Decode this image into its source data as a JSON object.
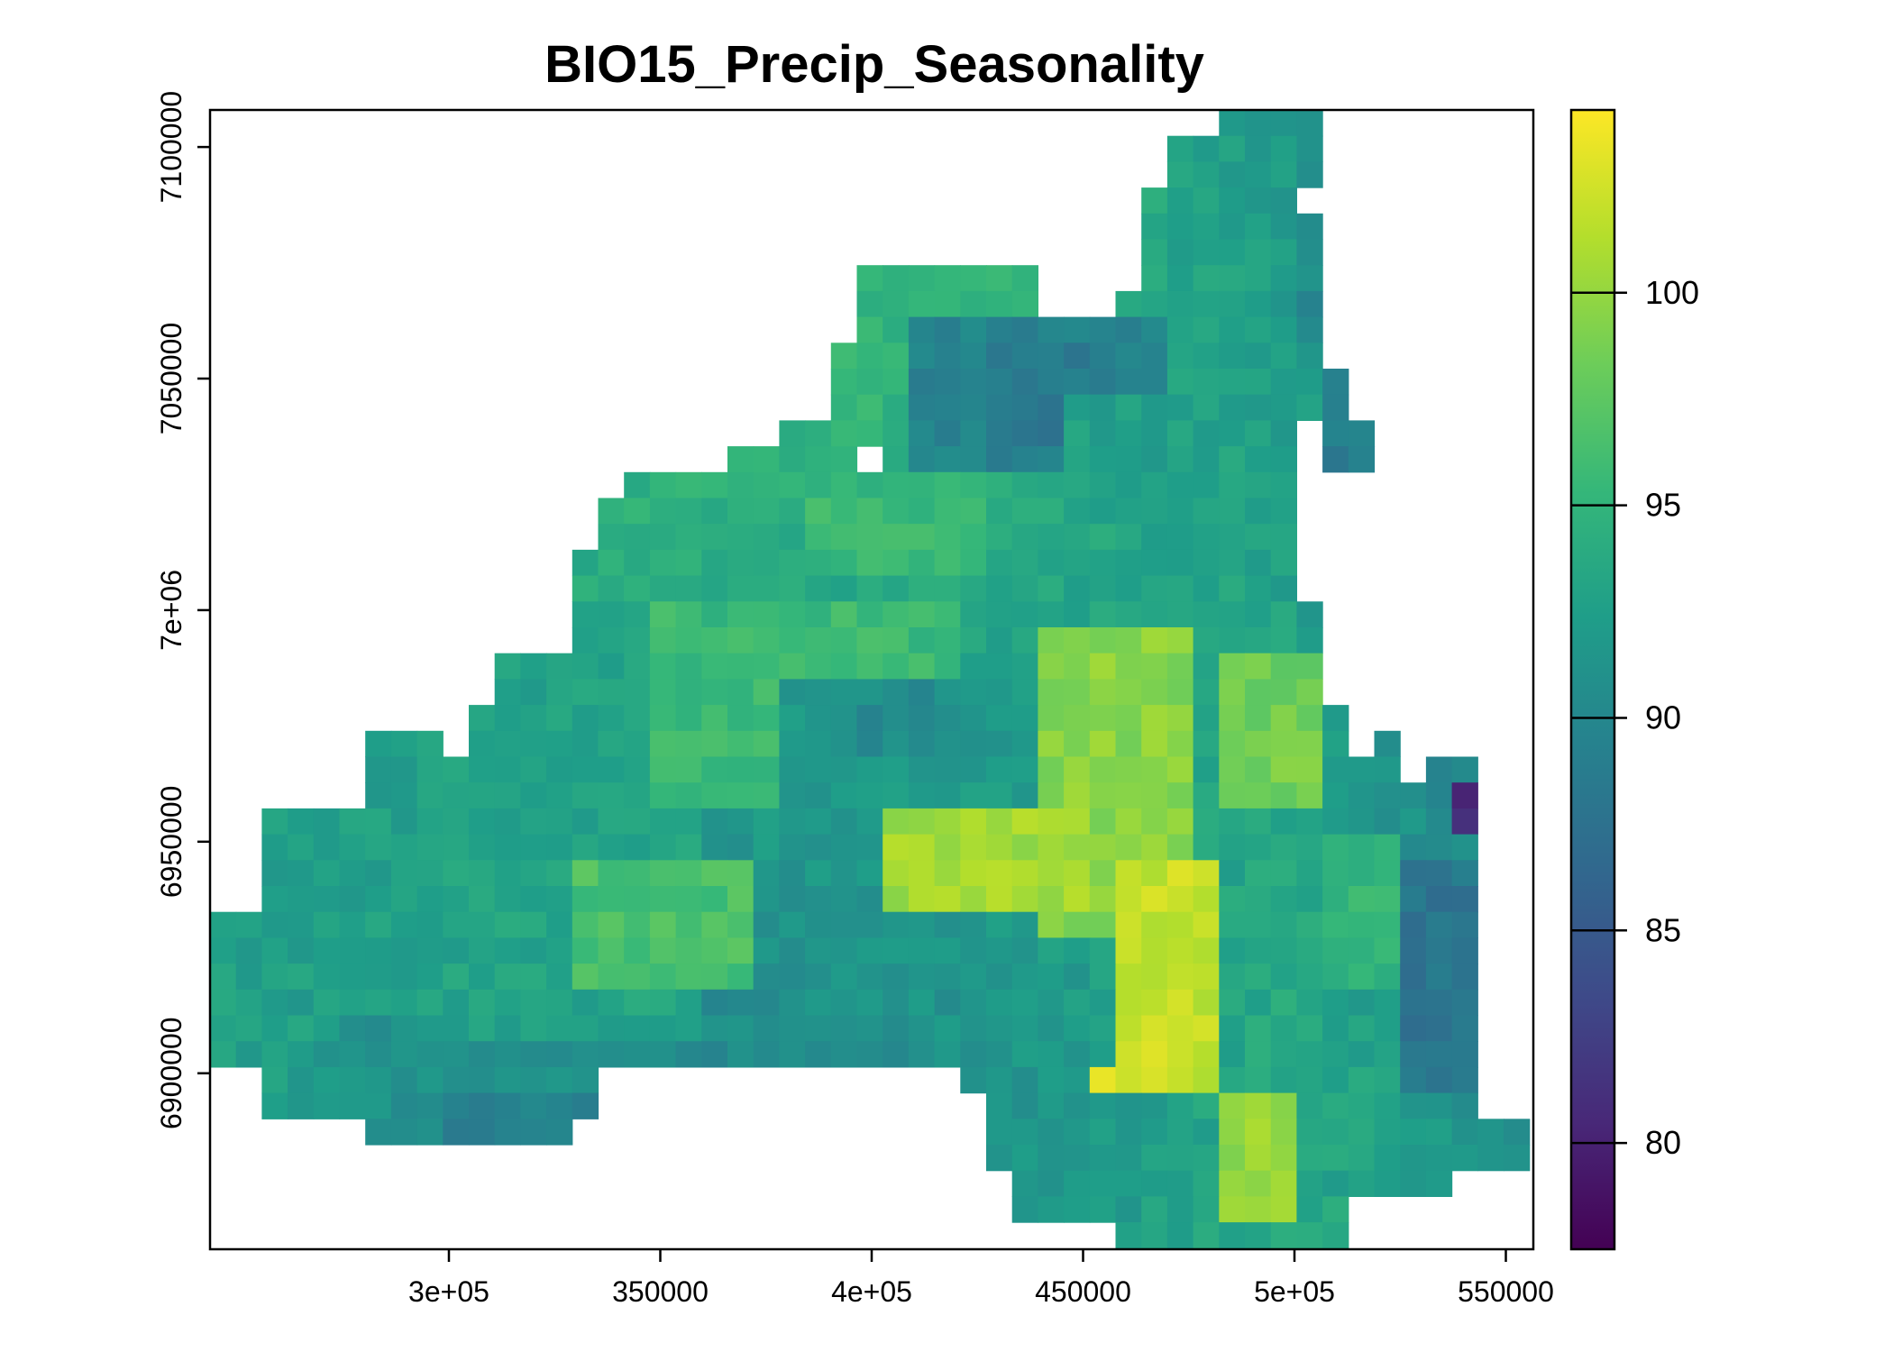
{
  "chart_data": {
    "type": "heatmap",
    "title": "BIO15_Precip_Seasonality",
    "xlabel": "",
    "ylabel": "",
    "xlim": [
      243500,
      556500
    ],
    "ylim": [
      6862000,
      7108000
    ],
    "x_tick_values": [
      300000,
      350000,
      400000,
      450000,
      500000,
      550000
    ],
    "x_tick_labels": [
      "3e+05",
      "350000",
      "4e+05",
      "450000",
      "5e+05",
      "550000"
    ],
    "y_tick_values": [
      6900000,
      6950000,
      7000000,
      7050000,
      7100000
    ],
    "y_tick_labels": [
      "6900000",
      "6950000",
      "7e+06",
      "7050000",
      "7100000"
    ],
    "colorbar": {
      "range": [
        77.5,
        104.3
      ],
      "tick_values": [
        80,
        85,
        90,
        95,
        100
      ],
      "tick_labels": [
        "80",
        "85",
        "90",
        "95",
        "100"
      ],
      "palette": [
        "#440154",
        "#482878",
        "#3e4a89",
        "#31688e",
        "#26828e",
        "#1f9e89",
        "#35b779",
        "#6dcd59",
        "#b4de2c",
        "#fde725"
      ]
    },
    "cell_size": 5600,
    "notes_on_values": "Approximate precipitation seasonality per region read from colors",
    "regions": [
      {
        "poly": [
          [
            250000,
            6905000
          ],
          [
            300000,
            6905000
          ],
          [
            300000,
            6955000
          ],
          [
            250000,
            6955000
          ]
        ],
        "value": 92.5
      },
      {
        "poly": [
          [
            275000,
            6875000
          ],
          [
            360000,
            6875000
          ],
          [
            360000,
            6915000
          ],
          [
            275000,
            6915000
          ]
        ],
        "value": 91
      },
      {
        "poly": [
          [
            300000,
            6880000
          ],
          [
            350000,
            6880000
          ],
          [
            350000,
            6895000
          ],
          [
            300000,
            6895000
          ]
        ],
        "value": 89.5
      },
      {
        "poly": [
          [
            300000,
            6905000
          ],
          [
            360000,
            6905000
          ],
          [
            360000,
            6975000
          ],
          [
            300000,
            6975000
          ]
        ],
        "value": 93
      },
      {
        "poly": [
          [
            330000,
            6920000
          ],
          [
            375000,
            6920000
          ],
          [
            375000,
            6945000
          ],
          [
            330000,
            6945000
          ]
        ],
        "value": 96.5
      },
      {
        "poly": [
          [
            345000,
            6955000
          ],
          [
            420000,
            6955000
          ],
          [
            420000,
            7000000
          ],
          [
            345000,
            7000000
          ]
        ],
        "value": 95.5
      },
      {
        "poly": [
          [
            380000,
            6955000
          ],
          [
            445000,
            6955000
          ],
          [
            445000,
            6985000
          ],
          [
            380000,
            6985000
          ]
        ],
        "value": 92
      },
      {
        "poly": [
          [
            395000,
            6970000
          ],
          [
            420000,
            6970000
          ],
          [
            420000,
            6985000
          ],
          [
            395000,
            6985000
          ]
        ],
        "value": 90.5
      },
      {
        "poly": [
          [
            385000,
            7005000
          ],
          [
            430000,
            7005000
          ],
          [
            430000,
            7030000
          ],
          [
            385000,
            7030000
          ]
        ],
        "value": 95.5
      },
      {
        "poly": [
          [
            410000,
            7030000
          ],
          [
            470000,
            7030000
          ],
          [
            470000,
            7065000
          ],
          [
            410000,
            7065000
          ]
        ],
        "value": 89.5
      },
      {
        "poly": [
          [
            430000,
            7035000
          ],
          [
            460000,
            7035000
          ],
          [
            460000,
            7055000
          ],
          [
            430000,
            7055000
          ]
        ],
        "value": 88.5
      },
      {
        "poly": [
          [
            445000,
            7020000
          ],
          [
            480000,
            7020000
          ],
          [
            480000,
            7045000
          ],
          [
            445000,
            7045000
          ]
        ],
        "value": 92.5
      },
      {
        "poly": [
          [
            440000,
            6930000
          ],
          [
            475000,
            6930000
          ],
          [
            475000,
            6995000
          ],
          [
            440000,
            6995000
          ]
        ],
        "value": 99.5
      },
      {
        "poly": [
          [
            455000,
            6895000
          ],
          [
            485000,
            6895000
          ],
          [
            485000,
            6945000
          ],
          [
            455000,
            6945000
          ]
        ],
        "value": 102
      },
      {
        "poly": [
          [
            450000,
            6897000
          ],
          [
            456000,
            6897000
          ],
          [
            456000,
            6904000
          ],
          [
            450000,
            6904000
          ]
        ],
        "value": 104
      },
      {
        "poly": [
          [
            405000,
            6935000
          ],
          [
            450000,
            6935000
          ],
          [
            450000,
            6955000
          ],
          [
            405000,
            6955000
          ]
        ],
        "value": 100.5
      },
      {
        "poly": [
          [
            480000,
            6955000
          ],
          [
            505000,
            6955000
          ],
          [
            505000,
            6990000
          ],
          [
            480000,
            6990000
          ]
        ],
        "value": 98.5
      },
      {
        "poly": [
          [
            480000,
            6870000
          ],
          [
            500000,
            6870000
          ],
          [
            500000,
            6895000
          ],
          [
            480000,
            6895000
          ]
        ],
        "value": 100
      },
      {
        "poly": [
          [
            500000,
            6875000
          ],
          [
            525000,
            6875000
          ],
          [
            525000,
            6900000
          ],
          [
            500000,
            6900000
          ]
        ],
        "value": 93
      },
      {
        "poly": [
          [
            505000,
            6920000
          ],
          [
            525000,
            6920000
          ],
          [
            525000,
            6950000
          ],
          [
            505000,
            6950000
          ]
        ],
        "value": 95
      },
      {
        "poly": [
          [
            505000,
            7000000
          ],
          [
            520000,
            7000000
          ],
          [
            520000,
            7060000
          ],
          [
            505000,
            7060000
          ]
        ],
        "value": 89
      },
      {
        "poly": [
          [
            500000,
            7060000
          ],
          [
            515000,
            7060000
          ],
          [
            515000,
            7105000
          ],
          [
            500000,
            7105000
          ]
        ],
        "value": 90.5
      },
      {
        "poly": [
          [
            525000,
            6895000
          ],
          [
            545000,
            6895000
          ],
          [
            545000,
            6945000
          ],
          [
            525000,
            6945000
          ]
        ],
        "value": 88
      },
      {
        "poly": [
          [
            536000,
            6985000
          ],
          [
            545000,
            6985000
          ],
          [
            545000,
            7012000
          ],
          [
            536000,
            7012000
          ]
        ],
        "value": 78
      },
      {
        "poly": [
          [
            540000,
            6950000
          ],
          [
            556000,
            6950000
          ],
          [
            556000,
            6965000
          ],
          [
            540000,
            6965000
          ]
        ],
        "value": 81
      }
    ]
  }
}
